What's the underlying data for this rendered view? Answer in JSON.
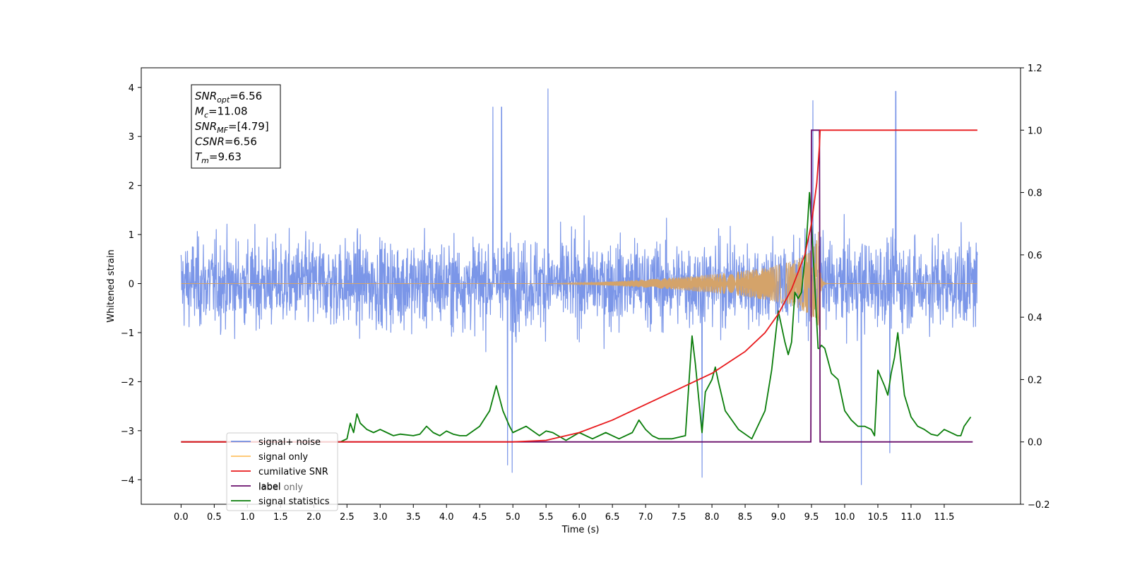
{
  "chart_data": {
    "type": "line",
    "xlabel": "Time (s)",
    "ylabel": "Whitened strain",
    "xlim": [
      -0.6,
      12.65
    ],
    "ylim_left": [
      -4.5,
      4.4
    ],
    "ylim_right": [
      -0.2,
      1.2
    ],
    "x_ticks": [
      0.0,
      0.5,
      1.0,
      1.5,
      2.0,
      2.5,
      3.0,
      3.5,
      4.0,
      4.5,
      5.0,
      5.5,
      6.0,
      6.5,
      7.0,
      7.5,
      8.0,
      8.5,
      9.0,
      9.5,
      10.0,
      10.5,
      11.0,
      11.5
    ],
    "x_tick_labels": [
      "0.0",
      "0.5",
      "1.0",
      "1.5",
      "2.0",
      "2.5",
      "3.0",
      "3.5",
      "4.0",
      "4.5",
      "5.0",
      "5.5",
      "6.0",
      "6.5",
      "7.0",
      "7.5",
      "8.0",
      "8.5",
      "9.0",
      "9.5",
      "10.0",
      "10.5",
      "11.0",
      "11.5"
    ],
    "y_ticks_left": [
      -4,
      -3,
      -2,
      -1,
      0,
      1,
      2,
      3,
      4
    ],
    "y_tick_labels_left": [
      "−4",
      "−3",
      "−2",
      "−1",
      "0",
      "1",
      "2",
      "3",
      "4"
    ],
    "y_ticks_right": [
      -0.2,
      0.0,
      0.2,
      0.4,
      0.6,
      0.8,
      1.0,
      1.2
    ],
    "y_tick_labels_right": [
      "−0.2",
      "0.0",
      "0.2",
      "0.4",
      "0.6",
      "0.8",
      "1.0",
      "1.2"
    ],
    "legend_position": "lower-left",
    "annotation": {
      "lines": [
        {
          "base": "SNR",
          "sub": "opt",
          "value": "=6.56"
        },
        {
          "base": "M",
          "sub": "c",
          "value": "=11.08"
        },
        {
          "base": "SNR",
          "sub": "MF",
          "value": "=[4.79]"
        },
        {
          "base": "CSNR",
          "sub": "",
          "value": "=6.56"
        },
        {
          "base": "T",
          "sub": "m",
          "value": "=9.63"
        }
      ]
    },
    "series": [
      {
        "name": "signal+ noise",
        "axis": "left",
        "color": "#7b96e8",
        "note_style": "noise",
        "x_range": [
          0.0,
          12.0
        ],
        "envelope_typical": [
          -1.6,
          1.6
        ],
        "peaks": [
          [
            5.53,
            3.97
          ],
          [
            9.52,
            3.73
          ],
          [
            10.77,
            3.92
          ],
          [
            4.7,
            3.6
          ],
          [
            4.83,
            3.6
          ],
          [
            10.25,
            -4.1
          ],
          [
            7.85,
            -3.95
          ],
          [
            4.99,
            -3.85
          ],
          [
            4.92,
            -3.7
          ],
          [
            10.68,
            -3.45
          ]
        ]
      },
      {
        "name": "signal only",
        "axis": "left",
        "color": "#d4a36a",
        "chirp": {
          "start": 5.5,
          "merger": 9.63,
          "peak_amplitude": 1.15
        }
      },
      {
        "name": "cumilative SNR",
        "axis": "right",
        "color": "#e8191c",
        "x": [
          0.0,
          5.0,
          5.5,
          6.0,
          6.5,
          7.0,
          7.5,
          8.0,
          8.5,
          8.8,
          9.0,
          9.2,
          9.4,
          9.5,
          9.58,
          9.62,
          9.63,
          12.0
        ],
        "y": [
          0.0,
          0.0,
          0.005,
          0.03,
          0.07,
          0.12,
          0.17,
          0.22,
          0.29,
          0.35,
          0.41,
          0.49,
          0.6,
          0.7,
          0.83,
          0.95,
          1.0,
          1.0
        ]
      },
      {
        "name": "label",
        "axis": "right",
        "color": "#6a0f6b",
        "x": [
          0.0,
          9.49,
          9.5,
          9.62,
          9.63,
          11.93
        ],
        "y": [
          0.0,
          0.0,
          1.0,
          1.0,
          0.0,
          0.0
        ]
      },
      {
        "name": "label only",
        "axis": "right",
        "color": "#ffffff",
        "hidden_under_legend": true
      },
      {
        "name": "signal statistics",
        "axis": "right",
        "color": "#0a7d0a",
        "x": [
          0.0,
          2.4,
          2.5,
          2.55,
          2.6,
          2.65,
          2.7,
          2.8,
          2.9,
          3.0,
          3.1,
          3.2,
          3.3,
          3.5,
          3.6,
          3.7,
          3.8,
          3.9,
          4.0,
          4.1,
          4.2,
          4.3,
          4.5,
          4.65,
          4.75,
          4.85,
          4.95,
          5.0,
          5.2,
          5.4,
          5.5,
          5.6,
          5.8,
          6.0,
          6.2,
          6.4,
          6.5,
          6.6,
          6.8,
          6.9,
          7.0,
          7.1,
          7.2,
          7.4,
          7.6,
          7.7,
          7.75,
          7.85,
          7.9,
          8.0,
          8.05,
          8.1,
          8.2,
          8.4,
          8.6,
          8.8,
          8.9,
          9.0,
          9.1,
          9.15,
          9.2,
          9.25,
          9.3,
          9.35,
          9.42,
          9.47,
          9.5,
          9.55,
          9.6,
          9.62,
          9.65,
          9.7,
          9.8,
          9.9,
          10.0,
          10.1,
          10.2,
          10.3,
          10.4,
          10.45,
          10.5,
          10.6,
          10.65,
          10.7,
          10.75,
          10.8,
          10.9,
          11.0,
          11.1,
          11.2,
          11.3,
          11.4,
          11.5,
          11.7,
          11.75,
          11.8,
          11.9
        ],
        "y": [
          0.0,
          0.0,
          0.01,
          0.06,
          0.03,
          0.09,
          0.06,
          0.04,
          0.03,
          0.04,
          0.03,
          0.02,
          0.025,
          0.02,
          0.025,
          0.05,
          0.03,
          0.02,
          0.035,
          0.025,
          0.02,
          0.02,
          0.05,
          0.1,
          0.18,
          0.1,
          0.05,
          0.03,
          0.05,
          0.02,
          0.035,
          0.03,
          0.005,
          0.03,
          0.01,
          0.03,
          0.02,
          0.01,
          0.03,
          0.07,
          0.04,
          0.02,
          0.01,
          0.01,
          0.02,
          0.34,
          0.25,
          0.03,
          0.16,
          0.2,
          0.24,
          0.19,
          0.1,
          0.04,
          0.01,
          0.1,
          0.23,
          0.42,
          0.32,
          0.28,
          0.32,
          0.48,
          0.46,
          0.48,
          0.63,
          0.8,
          0.7,
          0.5,
          0.3,
          0.3,
          0.31,
          0.3,
          0.22,
          0.2,
          0.1,
          0.07,
          0.05,
          0.05,
          0.04,
          0.02,
          0.23,
          0.18,
          0.15,
          0.22,
          0.27,
          0.35,
          0.15,
          0.08,
          0.05,
          0.04,
          0.025,
          0.02,
          0.04,
          0.02,
          0.02,
          0.05,
          0.08
        ]
      }
    ]
  }
}
